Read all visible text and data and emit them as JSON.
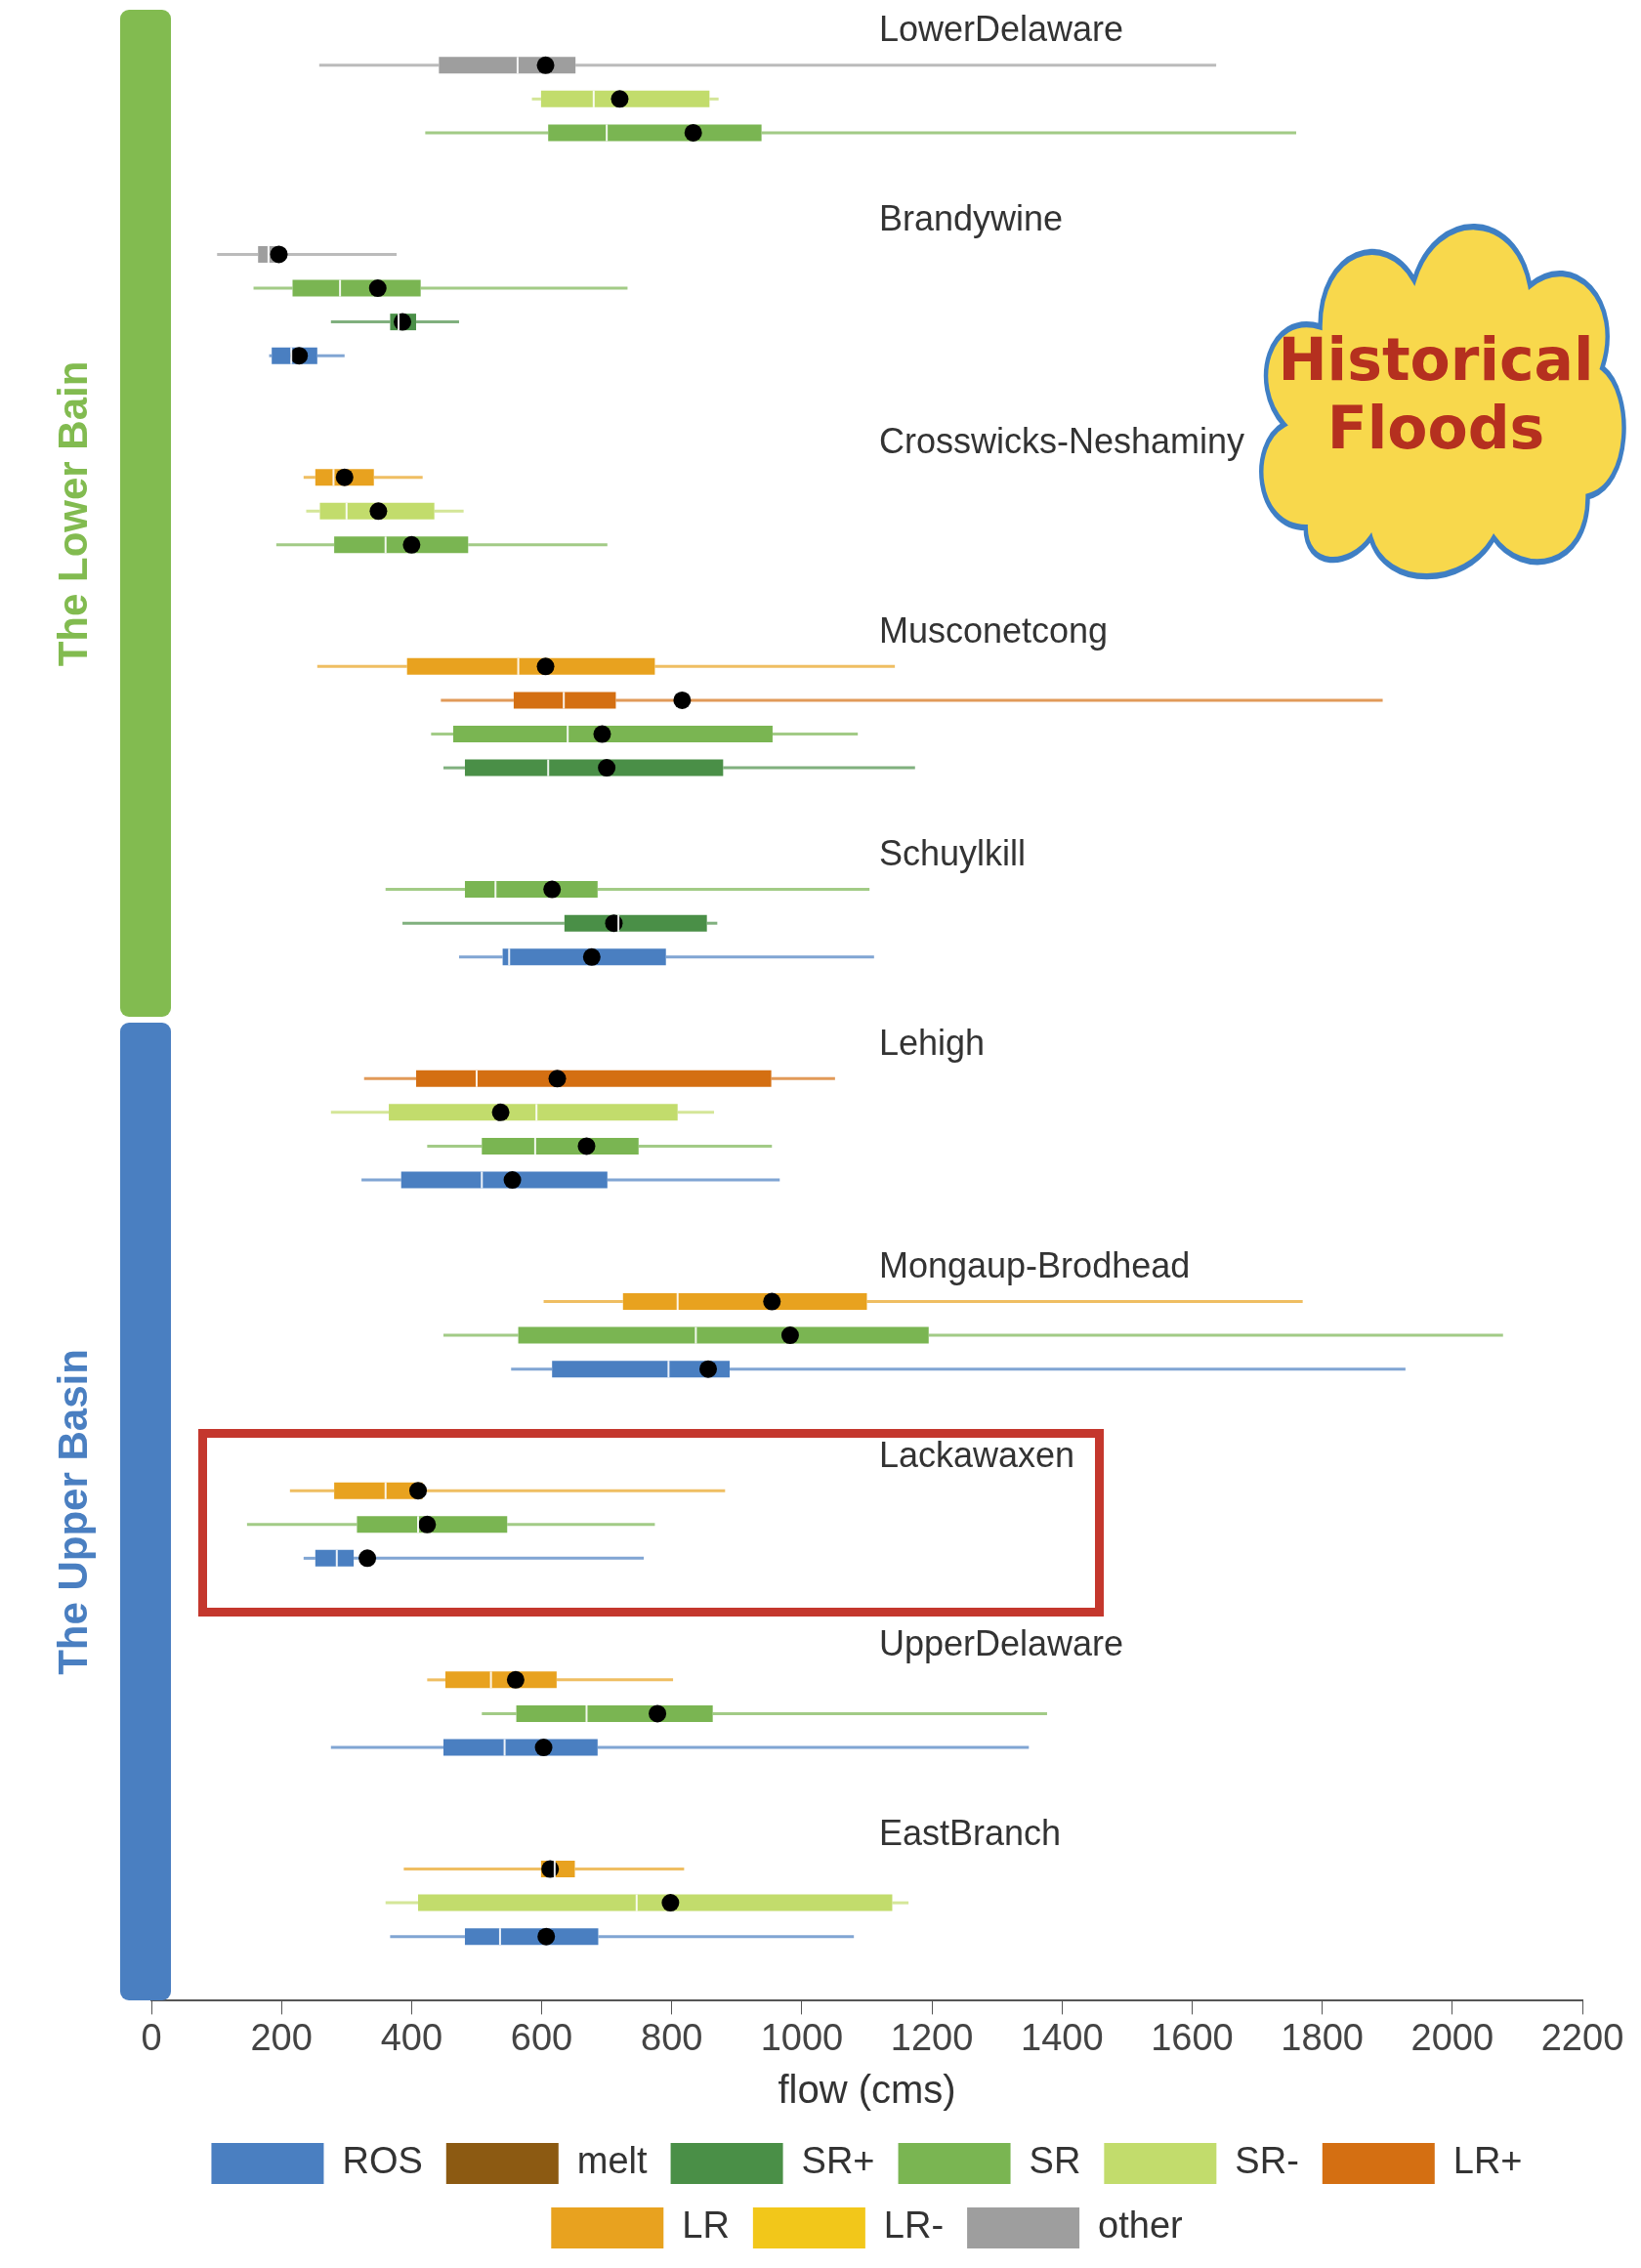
{
  "chart_data": {
    "type": "box",
    "orientation": "horizontal",
    "xlabel": "flow (cms)",
    "xlim": [
      0,
      2200
    ],
    "xticks": [
      0,
      200,
      400,
      600,
      800,
      1000,
      1200,
      1400,
      1600,
      1800,
      2000,
      2200
    ],
    "grid": false,
    "legend": "bottom",
    "categories": [
      "LowerDelaware",
      "Brandywine",
      "Crosswicks-Neshaminy",
      "Musconetcong",
      "Schuylkill",
      "Lehigh",
      "Mongaup-Brodhead",
      "Lackawaxen",
      "UpperDelaware",
      "EastBranch"
    ],
    "series": [
      {
        "name": "ROS",
        "color": "#4a7fc1",
        "boxes": [
          null,
          {
            "low": 181,
            "q1": 185,
            "median": 215,
            "q3": 255,
            "high": 297,
            "mean": 227
          },
          null,
          null,
          {
            "low": 473,
            "q1": 540,
            "median": 550,
            "q3": 791,
            "high": 1111,
            "mean": 677
          },
          {
            "low": 323,
            "q1": 384,
            "median": 508,
            "q3": 701,
            "high": 966,
            "mean": 555
          },
          {
            "low": 553,
            "q1": 616,
            "median": 795,
            "q3": 889,
            "high": 1928,
            "mean": 856
          },
          {
            "low": 234,
            "q1": 252,
            "median": 285,
            "q3": 311,
            "high": 757,
            "mean": 332
          },
          {
            "low": 276,
            "q1": 449,
            "median": 543,
            "q3": 686,
            "high": 1349,
            "mean": 603
          },
          {
            "low": 367,
            "q1": 482,
            "median": 536,
            "q3": 687,
            "high": 1080,
            "mean": 607
          }
        ]
      },
      {
        "name": "melt",
        "color": "#8c5a12",
        "boxes": [
          null,
          null,
          null,
          null,
          null,
          null,
          null,
          null,
          null,
          null
        ]
      },
      {
        "name": "SR+",
        "color": "#4a8f47",
        "boxes": [
          null,
          {
            "low": 276,
            "q1": 367,
            "median": 380,
            "q3": 407,
            "high": 473,
            "mean": 386
          },
          null,
          {
            "low": 449,
            "q1": 482,
            "median": 610,
            "q3": 879,
            "high": 1174,
            "mean": 700
          },
          {
            "low": 386,
            "q1": 635,
            "median": 718,
            "q3": 854,
            "high": 870,
            "mean": 711
          },
          null,
          null,
          null,
          null,
          null
        ]
      },
      {
        "name": "SR",
        "color": "#7ab552",
        "boxes": [
          {
            "low": 421,
            "q1": 610,
            "median": 700,
            "q3": 938,
            "high": 1760,
            "mean": 833
          },
          {
            "low": 157,
            "q1": 217,
            "median": 290,
            "q3": 414,
            "high": 732,
            "mean": 348
          },
          {
            "low": 192,
            "q1": 281,
            "median": 360,
            "q3": 487,
            "high": 701,
            "mean": 400
          },
          {
            "low": 430,
            "q1": 464,
            "median": 640,
            "q3": 955,
            "high": 1086,
            "mean": 693
          },
          {
            "low": 360,
            "q1": 482,
            "median": 529,
            "q3": 686,
            "high": 1104,
            "mean": 616
          },
          {
            "low": 424,
            "q1": 508,
            "median": 590,
            "q3": 749,
            "high": 954,
            "mean": 669
          },
          {
            "low": 449,
            "q1": 564,
            "median": 837,
            "q3": 1195,
            "high": 2078,
            "mean": 982
          },
          {
            "low": 147,
            "q1": 316,
            "median": 410,
            "q3": 547,
            "high": 774,
            "mean": 424
          },
          {
            "low": 508,
            "q1": 561,
            "median": 669,
            "q3": 863,
            "high": 1377,
            "mean": 778
          },
          null
        ]
      },
      {
        "name": "SR-",
        "color": "#c2dc6c",
        "boxes": [
          {
            "low": 585,
            "q1": 599,
            "median": 680,
            "q3": 858,
            "high": 872,
            "mean": 720
          },
          null,
          {
            "low": 238,
            "q1": 259,
            "median": 300,
            "q3": 435,
            "high": 480,
            "mean": 349
          },
          null,
          null,
          {
            "low": 276,
            "q1": 365,
            "median": 592,
            "q3": 809,
            "high": 865,
            "mean": 537
          },
          null,
          null,
          null,
          {
            "low": 360,
            "q1": 410,
            "median": 746,
            "q3": 1139,
            "high": 1164,
            "mean": 798
          }
        ]
      },
      {
        "name": "LR+",
        "color": "#d46f12",
        "boxes": [
          null,
          null,
          null,
          {
            "low": 445,
            "q1": 557,
            "median": 634,
            "q3": 714,
            "high": 1893,
            "mean": 816
          },
          null,
          {
            "low": 327,
            "q1": 407,
            "median": 500,
            "q3": 953,
            "high": 1051,
            "mean": 624
          },
          null,
          null,
          null,
          null
        ]
      },
      {
        "name": "LR",
        "color": "#e8a21f",
        "boxes": [
          null,
          null,
          {
            "low": 234,
            "q1": 252,
            "median": 280,
            "q3": 342,
            "high": 417,
            "mean": 297
          },
          {
            "low": 255,
            "q1": 393,
            "median": 564,
            "q3": 774,
            "high": 1143,
            "mean": 606
          },
          null,
          null,
          {
            "low": 603,
            "q1": 725,
            "median": 809,
            "q3": 1100,
            "high": 1770,
            "mean": 954
          },
          {
            "low": 213,
            "q1": 281,
            "median": 360,
            "q3": 417,
            "high": 882,
            "mean": 410
          },
          {
            "low": 424,
            "q1": 452,
            "median": 522,
            "q3": 623,
            "high": 802,
            "mean": 560
          },
          {
            "low": 388,
            "q1": 599,
            "median": 620,
            "q3": 651,
            "high": 819,
            "mean": 613
          }
        ]
      },
      {
        "name": "LR-",
        "color": "#f2c71a",
        "boxes": [
          null,
          null,
          null,
          null,
          null,
          null,
          null,
          null,
          null,
          null
        ]
      },
      {
        "name": "other",
        "color": "#9e9e9e",
        "boxes": [
          {
            "low": 258,
            "q1": 442,
            "median": 563,
            "q3": 652,
            "high": 1637,
            "mean": 606
          },
          {
            "low": 101,
            "q1": 164,
            "median": 180,
            "q3": 199,
            "high": 377,
            "mean": 196
          },
          null,
          null,
          null,
          null,
          null,
          null,
          null,
          null
        ]
      }
    ],
    "annotations": [
      "The Lower Bain",
      "The Upper Basin",
      "Historical Floods"
    ]
  }
}
